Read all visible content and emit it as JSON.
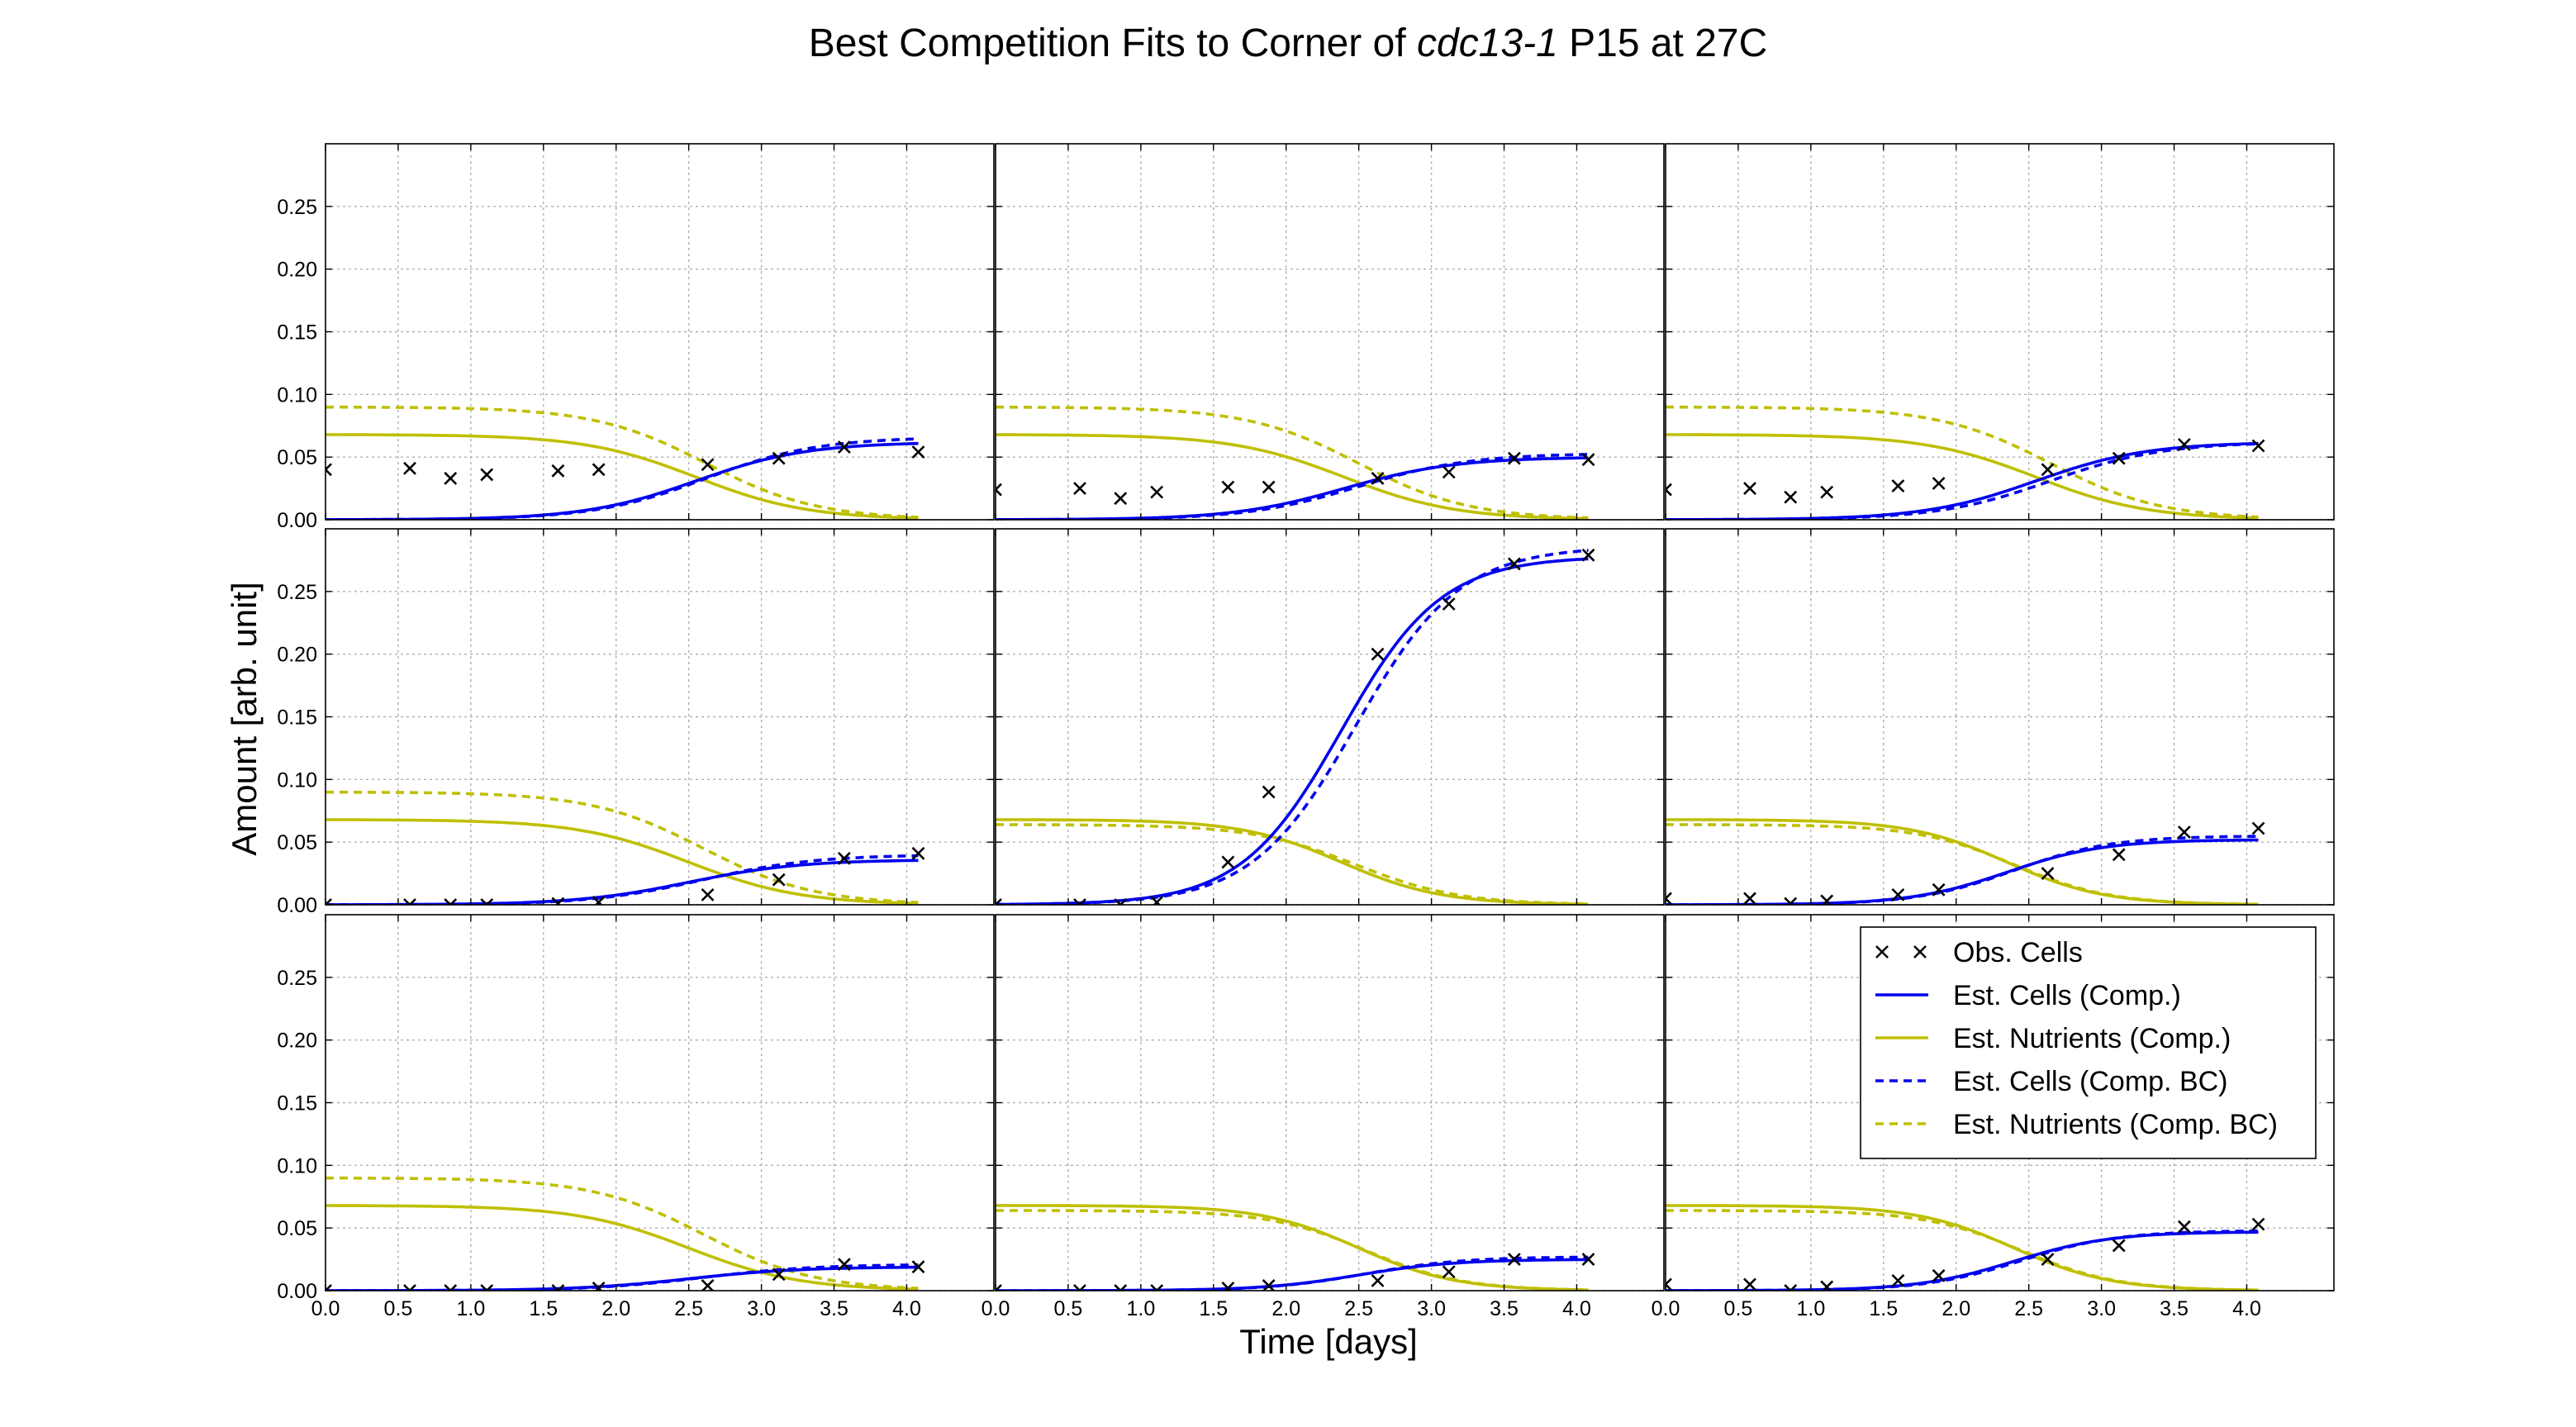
{
  "chart_data": {
    "type": "line",
    "title_prefix": "Best Competition Fits to Corner of",
    "title_italic": "cdc13-1",
    "title_suffix": "P15 at 27C",
    "xlabel": "Time [days]",
    "ylabel": "Amount [arb. unit]",
    "xlim": [
      0,
      4.6
    ],
    "ylim": [
      0,
      0.3
    ],
    "xticks": [
      "0.0",
      "0.5",
      "1.0",
      "1.5",
      "2.0",
      "2.5",
      "3.0",
      "3.5",
      "4.0"
    ],
    "yticks": [
      "0.00",
      "0.05",
      "0.10",
      "0.15",
      "0.20",
      "0.25"
    ],
    "grid": true,
    "legend_position": "upper-right of bottom-right panel",
    "colors": {
      "cells": "#0000ee",
      "nutrients": "#bfbf00",
      "obs": "#000000"
    },
    "legend": [
      {
        "label": "Obs. Cells",
        "style": "marker"
      },
      {
        "label": "Est. Cells (Comp.)",
        "style": "cells-solid"
      },
      {
        "label": "Est. Nutrients (Comp.)",
        "style": "nutrients-solid"
      },
      {
        "label": "Est. Cells (Comp. BC)",
        "style": "cells-dashed"
      },
      {
        "label": "Est. Nutrients (Comp. BC)",
        "style": "nutrients-dashed"
      }
    ],
    "obs_times": [
      0.0,
      0.58,
      0.86,
      1.11,
      1.6,
      1.88,
      2.63,
      3.12,
      3.57,
      4.08
    ],
    "panels": [
      {
        "obs": [
          0.04,
          0.041,
          0.033,
          0.036,
          0.039,
          0.04,
          0.044,
          0.049,
          0.058,
          0.054
        ],
        "comp": {
          "K": 0.062,
          "r": 2.6,
          "t0": 2.55,
          "N0": 0.068
        },
        "bc": {
          "K": 0.066,
          "r": 2.6,
          "t0": 2.62,
          "N0": 0.09
        }
      },
      {
        "obs": [
          0.024,
          0.025,
          0.017,
          0.022,
          0.026,
          0.026,
          0.033,
          0.038,
          0.049,
          0.048
        ],
        "comp": {
          "K": 0.05,
          "r": 2.6,
          "t0": 2.4,
          "N0": 0.068
        },
        "bc": {
          "K": 0.053,
          "r": 2.6,
          "t0": 2.5,
          "N0": 0.09
        }
      },
      {
        "obs": [
          0.024,
          0.025,
          0.018,
          0.022,
          0.027,
          0.029,
          0.04,
          0.049,
          0.06,
          0.059
        ],
        "comp": {
          "K": 0.062,
          "r": 2.6,
          "t0": 2.55,
          "N0": 0.068
        },
        "bc": {
          "K": 0.062,
          "r": 2.6,
          "t0": 2.65,
          "N0": 0.09
        }
      },
      {
        "obs": [
          0.0,
          0.0,
          0.0,
          0.0,
          0.001,
          0.002,
          0.008,
          0.02,
          0.037,
          0.041
        ],
        "comp": {
          "K": 0.036,
          "r": 2.6,
          "t0": 2.5,
          "N0": 0.068
        },
        "bc": {
          "K": 0.04,
          "r": 2.6,
          "t0": 2.6,
          "N0": 0.09
        }
      },
      {
        "obs": [
          0.0,
          0.0,
          0.0,
          0.002,
          0.034,
          0.09,
          0.2,
          0.24,
          0.272,
          0.279
        ],
        "comp": {
          "K": 0.278,
          "r": 2.9,
          "t0": 2.38,
          "N0": 0.068
        },
        "bc": {
          "K": 0.286,
          "r": 2.8,
          "t0": 2.48,
          "N0": 0.064
        }
      },
      {
        "obs": [
          0.005,
          0.005,
          0.001,
          0.003,
          0.008,
          0.012,
          0.025,
          0.04,
          0.058,
          0.061
        ],
        "comp": {
          "K": 0.052,
          "r": 3.0,
          "t0": 2.35,
          "N0": 0.068
        },
        "bc": {
          "K": 0.055,
          "r": 3.0,
          "t0": 2.4,
          "N0": 0.064
        }
      },
      {
        "obs": [
          0.0,
          0.0,
          0.0,
          0.0,
          0.0,
          0.002,
          0.004,
          0.013,
          0.021,
          0.019
        ],
        "comp": {
          "K": 0.019,
          "r": 2.6,
          "t0": 2.5,
          "N0": 0.068
        },
        "bc": {
          "K": 0.021,
          "r": 2.6,
          "t0": 2.6,
          "N0": 0.09
        }
      },
      {
        "obs": [
          0.0,
          0.0,
          0.0,
          0.0,
          0.002,
          0.004,
          0.008,
          0.015,
          0.025,
          0.025
        ],
        "comp": {
          "K": 0.025,
          "r": 3.0,
          "t0": 2.5,
          "N0": 0.068
        },
        "bc": {
          "K": 0.027,
          "r": 3.0,
          "t0": 2.55,
          "N0": 0.064
        }
      },
      {
        "obs": [
          0.005,
          0.005,
          0.0,
          0.003,
          0.008,
          0.012,
          0.025,
          0.036,
          0.051,
          0.053
        ],
        "comp": {
          "K": 0.047,
          "r": 3.0,
          "t0": 2.4,
          "N0": 0.068
        },
        "bc": {
          "K": 0.048,
          "r": 3.0,
          "t0": 2.45,
          "N0": 0.064
        }
      }
    ]
  }
}
